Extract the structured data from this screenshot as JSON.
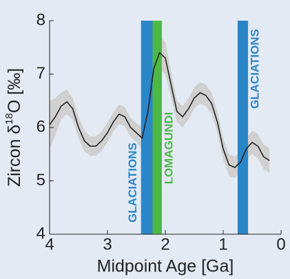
{
  "chart_data": {
    "type": "line",
    "x_label": "Midpoint Age [Ga]",
    "y_label": [
      "Zircon δ",
      "18",
      "O [‰]"
    ],
    "xlim": [
      4,
      0
    ],
    "ylim": [
      4,
      8
    ],
    "xticks": [
      4,
      3,
      2,
      1,
      0
    ],
    "yticks": [
      4,
      5,
      6,
      7,
      8
    ],
    "x": [
      4,
      3.9,
      3.8,
      3.7,
      3.6,
      3.5,
      3.4,
      3.3,
      3.2,
      3.1,
      3.0,
      2.9,
      2.8,
      2.7,
      2.6,
      2.5,
      2.4,
      2.3,
      2.2,
      2.1,
      2.0,
      1.9,
      1.8,
      1.7,
      1.6,
      1.5,
      1.4,
      1.3,
      1.2,
      1.1,
      1.0,
      0.9,
      0.8,
      0.7,
      0.6,
      0.5,
      0.4,
      0.3,
      0.2
    ],
    "series": [
      {
        "color": "#222222",
        "values": [
          6.05,
          6.2,
          6.4,
          6.48,
          6.35,
          6.0,
          5.75,
          5.65,
          5.65,
          5.75,
          5.9,
          6.1,
          6.25,
          6.2,
          6.0,
          5.9,
          5.8,
          6.3,
          7.1,
          7.4,
          7.3,
          6.8,
          6.3,
          6.2,
          6.35,
          6.55,
          6.65,
          6.6,
          6.45,
          6.1,
          5.6,
          5.3,
          5.25,
          5.35,
          5.6,
          5.72,
          5.65,
          5.45,
          5.38
        ]
      }
    ],
    "band": {
      "color": "#d0d0d0",
      "lower": [
        5.6,
        5.85,
        6.15,
        6.25,
        6.15,
        5.8,
        5.55,
        5.47,
        5.47,
        5.57,
        5.72,
        5.92,
        6.07,
        6.02,
        5.82,
        5.72,
        5.6,
        6.0,
        6.8,
        7.1,
        7.0,
        6.55,
        6.1,
        6.0,
        6.15,
        6.35,
        6.45,
        6.4,
        6.25,
        5.9,
        5.4,
        5.1,
        5.05,
        5.15,
        5.4,
        5.5,
        5.42,
        5.22,
        5.15
      ],
      "upper": [
        6.5,
        6.55,
        6.65,
        6.71,
        6.55,
        6.2,
        5.95,
        5.83,
        5.83,
        5.93,
        6.08,
        6.28,
        6.43,
        6.38,
        6.18,
        6.08,
        6.0,
        6.6,
        7.4,
        7.7,
        7.6,
        7.05,
        6.5,
        6.4,
        6.55,
        6.75,
        6.85,
        6.8,
        6.65,
        6.3,
        5.8,
        5.5,
        5.45,
        5.55,
        5.8,
        5.94,
        5.88,
        5.68,
        5.61
      ]
    },
    "regions": [
      {
        "label": "GLACIATIONS",
        "color": "#2b86c8",
        "x": [
          2.42,
          2.22
        ]
      },
      {
        "label": "LOMAGUNDI",
        "color": "#4cb848",
        "x": [
          2.22,
          2.06
        ]
      },
      {
        "label": "GLACIATIONS",
        "color": "#2b86c8",
        "x": [
          0.75,
          0.57
        ]
      }
    ]
  }
}
